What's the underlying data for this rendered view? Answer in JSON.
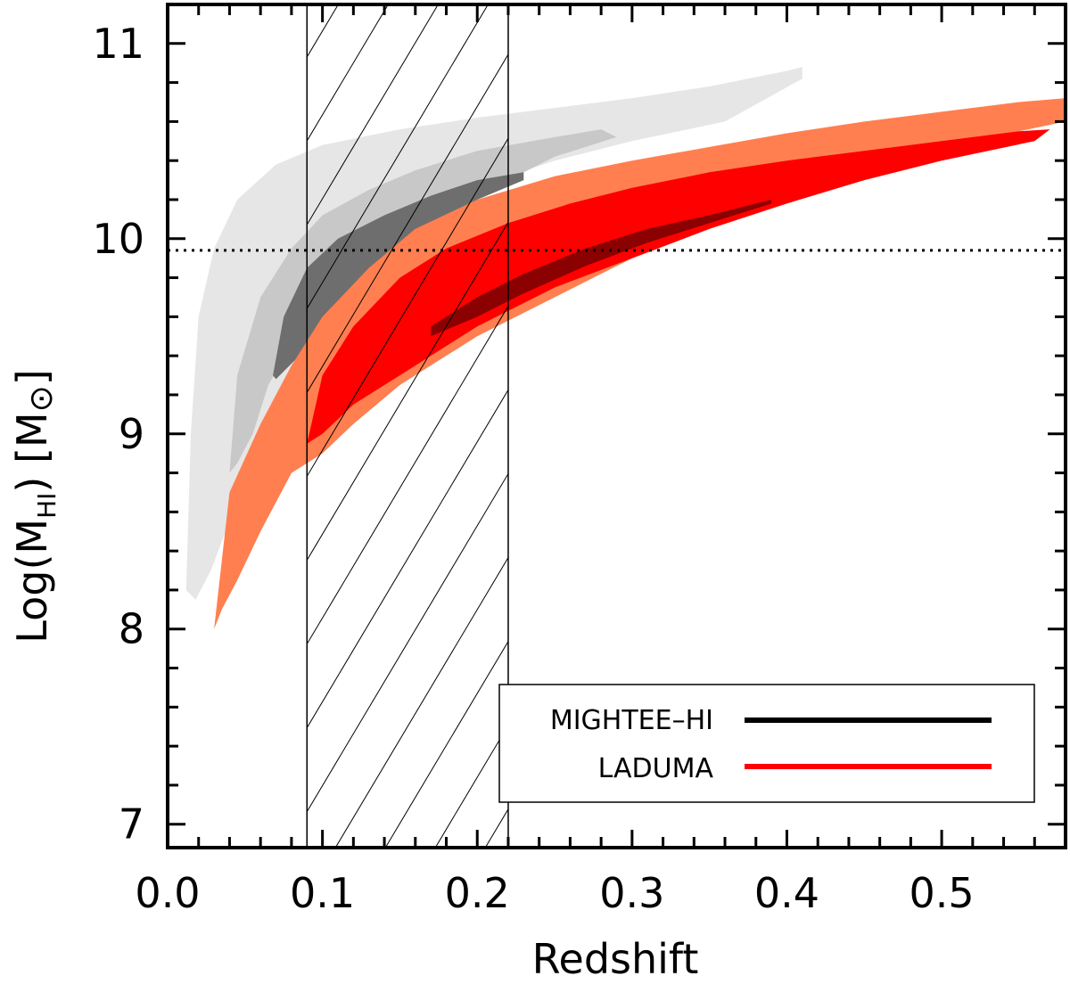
{
  "chart_data": {
    "type": "area",
    "title": "",
    "xlabel": "Redshift",
    "ylabel_prefix": "Log(M",
    "ylabel_sub": "HI",
    "ylabel_mid": ")  [M",
    "ylabel_sun": "⊙",
    "ylabel_suffix": "]",
    "xlim": [
      0.0,
      0.58
    ],
    "ylim": [
      6.88,
      11.2
    ],
    "x_ticks": [
      0.0,
      0.1,
      0.2,
      0.3,
      0.4,
      0.5
    ],
    "x_tick_labels": [
      "0.0",
      "0.1",
      "0.2",
      "0.3",
      "0.4",
      "0.5"
    ],
    "y_ticks": [
      7,
      8,
      9,
      10,
      11
    ],
    "y_tick_labels": [
      "7",
      "8",
      "9",
      "10",
      "11"
    ],
    "x_minor_step": 0.02,
    "y_minor_step": 0.2,
    "reference_line_y": 9.94,
    "hatched_region_x": [
      0.09,
      0.22
    ],
    "legend": [
      {
        "label": "MIGHTEE–HI",
        "color": "#000000"
      },
      {
        "label": "LADUMA",
        "color": "#ff0000"
      }
    ],
    "series": [
      {
        "name": "MIGHTEE-HI outer contour",
        "color": "#e6e6e6",
        "upper": [
          [
            0.012,
            8.2
          ],
          [
            0.015,
            9.0
          ],
          [
            0.02,
            9.6
          ],
          [
            0.03,
            9.95
          ],
          [
            0.045,
            10.2
          ],
          [
            0.07,
            10.38
          ],
          [
            0.1,
            10.48
          ],
          [
            0.15,
            10.56
          ],
          [
            0.2,
            10.62
          ],
          [
            0.25,
            10.67
          ],
          [
            0.3,
            10.72
          ],
          [
            0.35,
            10.78
          ],
          [
            0.4,
            10.86
          ],
          [
            0.41,
            10.88
          ]
        ],
        "lower": [
          [
            0.41,
            10.82
          ],
          [
            0.36,
            10.6
          ],
          [
            0.3,
            10.5
          ],
          [
            0.25,
            10.4
          ],
          [
            0.22,
            10.32
          ],
          [
            0.18,
            10.2
          ],
          [
            0.14,
            9.95
          ],
          [
            0.1,
            9.55
          ],
          [
            0.07,
            9.1
          ],
          [
            0.05,
            8.75
          ],
          [
            0.035,
            8.45
          ],
          [
            0.028,
            8.3
          ],
          [
            0.018,
            8.15
          ]
        ]
      },
      {
        "name": "MIGHTEE-HI middle contour",
        "color": "#c8c8c8",
        "upper": [
          [
            0.04,
            8.8
          ],
          [
            0.045,
            9.3
          ],
          [
            0.06,
            9.7
          ],
          [
            0.08,
            9.95
          ],
          [
            0.1,
            10.12
          ],
          [
            0.13,
            10.25
          ],
          [
            0.16,
            10.35
          ],
          [
            0.2,
            10.45
          ],
          [
            0.25,
            10.52
          ],
          [
            0.28,
            10.56
          ]
        ],
        "lower": [
          [
            0.29,
            10.52
          ],
          [
            0.25,
            10.42
          ],
          [
            0.22,
            10.3
          ],
          [
            0.18,
            10.18
          ],
          [
            0.15,
            10.08
          ],
          [
            0.12,
            9.9
          ],
          [
            0.1,
            9.7
          ],
          [
            0.08,
            9.45
          ],
          [
            0.065,
            9.25
          ],
          [
            0.055,
            9.0
          ],
          [
            0.045,
            8.85
          ]
        ]
      },
      {
        "name": "MIGHTEE-HI inner contour",
        "color": "#6e6e6e",
        "upper": [
          [
            0.068,
            9.3
          ],
          [
            0.075,
            9.6
          ],
          [
            0.09,
            9.85
          ],
          [
            0.11,
            10.0
          ],
          [
            0.14,
            10.12
          ],
          [
            0.17,
            10.22
          ],
          [
            0.2,
            10.3
          ],
          [
            0.23,
            10.34
          ]
        ],
        "lower": [
          [
            0.23,
            10.3
          ],
          [
            0.2,
            10.2
          ],
          [
            0.17,
            10.05
          ],
          [
            0.14,
            9.85
          ],
          [
            0.12,
            9.7
          ],
          [
            0.1,
            9.55
          ],
          [
            0.085,
            9.4
          ],
          [
            0.07,
            9.28
          ]
        ]
      },
      {
        "name": "LADUMA outer contour",
        "color": "#ff7f50",
        "upper": [
          [
            0.03,
            8.0
          ],
          [
            0.04,
            8.7
          ],
          [
            0.06,
            9.05
          ],
          [
            0.08,
            9.35
          ],
          [
            0.1,
            9.6
          ],
          [
            0.13,
            9.85
          ],
          [
            0.16,
            10.05
          ],
          [
            0.2,
            10.2
          ],
          [
            0.25,
            10.32
          ],
          [
            0.3,
            10.4
          ],
          [
            0.35,
            10.47
          ],
          [
            0.4,
            10.54
          ],
          [
            0.45,
            10.6
          ],
          [
            0.5,
            10.65
          ],
          [
            0.55,
            10.7
          ],
          [
            0.58,
            10.72
          ]
        ],
        "lower": [
          [
            0.58,
            10.6
          ],
          [
            0.55,
            10.55
          ],
          [
            0.5,
            10.45
          ],
          [
            0.45,
            10.35
          ],
          [
            0.4,
            10.2
          ],
          [
            0.35,
            10.05
          ],
          [
            0.3,
            9.9
          ],
          [
            0.25,
            9.7
          ],
          [
            0.2,
            9.5
          ],
          [
            0.15,
            9.25
          ],
          [
            0.12,
            9.05
          ],
          [
            0.1,
            8.9
          ],
          [
            0.08,
            8.8
          ],
          [
            0.06,
            8.5
          ],
          [
            0.045,
            8.25
          ],
          [
            0.035,
            8.1
          ]
        ]
      },
      {
        "name": "LADUMA middle contour",
        "color": "#ff0000",
        "upper": [
          [
            0.09,
            8.95
          ],
          [
            0.1,
            9.3
          ],
          [
            0.12,
            9.55
          ],
          [
            0.15,
            9.8
          ],
          [
            0.18,
            9.95
          ],
          [
            0.22,
            10.08
          ],
          [
            0.26,
            10.18
          ],
          [
            0.3,
            10.26
          ],
          [
            0.35,
            10.34
          ],
          [
            0.4,
            10.4
          ],
          [
            0.45,
            10.45
          ],
          [
            0.5,
            10.5
          ],
          [
            0.55,
            10.55
          ],
          [
            0.57,
            10.56
          ]
        ],
        "lower": [
          [
            0.56,
            10.5
          ],
          [
            0.5,
            10.4
          ],
          [
            0.45,
            10.3
          ],
          [
            0.4,
            10.18
          ],
          [
            0.35,
            10.05
          ],
          [
            0.3,
            9.9
          ],
          [
            0.25,
            9.75
          ],
          [
            0.2,
            9.55
          ],
          [
            0.15,
            9.3
          ],
          [
            0.12,
            9.15
          ],
          [
            0.1,
            9.0
          ]
        ]
      },
      {
        "name": "LADUMA inner contour",
        "color": "#8b0000",
        "upper": [
          [
            0.17,
            9.55
          ],
          [
            0.2,
            9.7
          ],
          [
            0.23,
            9.82
          ],
          [
            0.27,
            9.95
          ],
          [
            0.31,
            10.05
          ],
          [
            0.35,
            10.12
          ],
          [
            0.39,
            10.2
          ]
        ],
        "lower": [
          [
            0.39,
            10.18
          ],
          [
            0.35,
            10.08
          ],
          [
            0.31,
            9.98
          ],
          [
            0.27,
            9.86
          ],
          [
            0.23,
            9.72
          ],
          [
            0.2,
            9.6
          ],
          [
            0.17,
            9.5
          ]
        ]
      }
    ]
  }
}
